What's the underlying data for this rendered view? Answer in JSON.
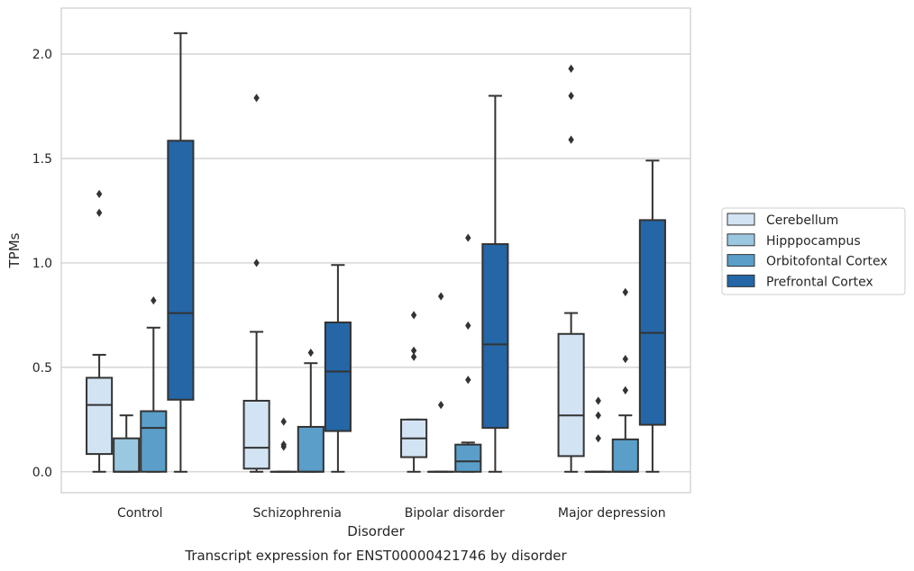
{
  "chart_data": {
    "type": "box",
    "title": "Transcript expression for ENST00000421746 by disorder",
    "xlabel": "Disorder",
    "ylabel": "TPMs",
    "ylim": [
      -0.1,
      2.22
    ],
    "yticks": [
      0.0,
      0.5,
      1.0,
      1.5,
      2.0
    ],
    "ytick_labels": [
      "0.0",
      "0.5",
      "1.0",
      "1.5",
      "2.0"
    ],
    "grid": "horizontal",
    "legend_position": "right",
    "categories": [
      "Control",
      "Schizophrenia",
      "Bipolar disorder",
      "Major depression"
    ],
    "series": [
      {
        "name": "Cerebellum",
        "color": "#d2e3f3",
        "boxes": [
          {
            "whislo": 0.0,
            "q1": 0.085,
            "med": 0.32,
            "q3": 0.45,
            "whishi": 0.56,
            "fliers": [
              1.24,
              1.33
            ]
          },
          {
            "whislo": 0.0,
            "q1": 0.015,
            "med": 0.115,
            "q3": 0.34,
            "whishi": 0.67,
            "fliers": [
              1.0,
              1.79
            ]
          },
          {
            "whislo": 0.0,
            "q1": 0.07,
            "med": 0.16,
            "q3": 0.25,
            "whishi": 0.25,
            "fliers": [
              0.55,
              0.58,
              0.75
            ]
          },
          {
            "whislo": 0.0,
            "q1": 0.075,
            "med": 0.27,
            "q3": 0.66,
            "whishi": 0.76,
            "fliers": [
              1.59,
              1.8,
              1.93
            ]
          }
        ]
      },
      {
        "name": "Hipppocampus",
        "color": "#9ac8e0",
        "boxes": [
          {
            "whislo": 0.0,
            "q1": 0.0,
            "med": 0.0,
            "q3": 0.16,
            "whishi": 0.27,
            "fliers": []
          },
          {
            "whislo": 0.0,
            "q1": 0.0,
            "med": 0.0,
            "q3": 0.0,
            "whishi": 0.0,
            "fliers": [
              0.12,
              0.13,
              0.24
            ]
          },
          {
            "whislo": 0.0,
            "q1": 0.0,
            "med": 0.0,
            "q3": 0.0,
            "whishi": 0.0,
            "fliers": [
              0.32,
              0.84
            ]
          },
          {
            "whislo": 0.0,
            "q1": 0.0,
            "med": 0.0,
            "q3": 0.0,
            "whishi": 0.0,
            "fliers": [
              0.16,
              0.27,
              0.34
            ]
          }
        ]
      },
      {
        "name": "Orbitofontal Cortex",
        "color": "#5a9ec9",
        "boxes": [
          {
            "whislo": 0.0,
            "q1": 0.0,
            "med": 0.21,
            "q3": 0.29,
            "whishi": 0.69,
            "fliers": [
              0.82
            ]
          },
          {
            "whislo": 0.0,
            "q1": 0.0,
            "med": 0.0,
            "q3": 0.215,
            "whishi": 0.52,
            "fliers": [
              0.57
            ]
          },
          {
            "whislo": 0.0,
            "q1": 0.0,
            "med": 0.05,
            "q3": 0.13,
            "whishi": 0.14,
            "fliers": [
              0.44,
              0.7,
              1.12
            ]
          },
          {
            "whislo": 0.0,
            "q1": 0.0,
            "med": 0.0,
            "q3": 0.155,
            "whishi": 0.27,
            "fliers": [
              0.39,
              0.54,
              0.86
            ]
          }
        ]
      },
      {
        "name": "Prefrontal Cortex",
        "color": "#2466a6",
        "boxes": [
          {
            "whislo": 0.0,
            "q1": 0.345,
            "med": 0.76,
            "q3": 1.585,
            "whishi": 2.1,
            "fliers": []
          },
          {
            "whislo": 0.0,
            "q1": 0.195,
            "med": 0.48,
            "q3": 0.715,
            "whishi": 0.99,
            "fliers": []
          },
          {
            "whislo": 0.0,
            "q1": 0.21,
            "med": 0.61,
            "q3": 1.09,
            "whishi": 1.8,
            "fliers": []
          },
          {
            "whislo": 0.0,
            "q1": 0.225,
            "med": 0.665,
            "q3": 1.205,
            "whishi": 1.49,
            "fliers": []
          }
        ]
      }
    ]
  }
}
